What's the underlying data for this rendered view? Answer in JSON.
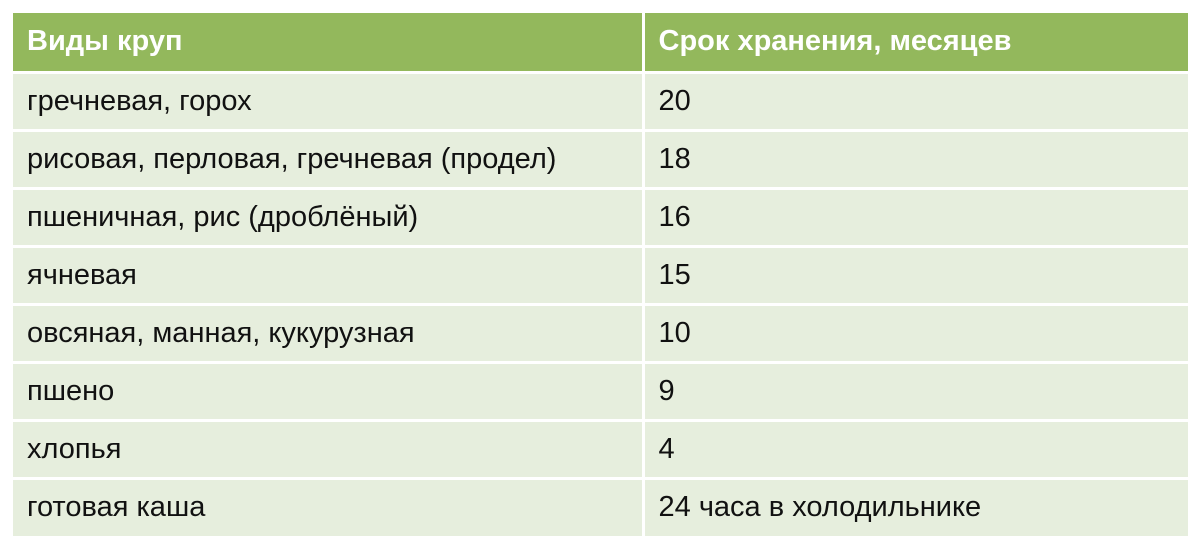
{
  "table": {
    "headers": [
      "Виды круп",
      "Срок хранения, месяцев"
    ],
    "rows": [
      [
        "гречневая, горох",
        "20"
      ],
      [
        "рисовая, перловая, гречневая (продел)",
        "18"
      ],
      [
        "пшеничная, рис (дроблёный)",
        "16"
      ],
      [
        "ячневая",
        "15"
      ],
      [
        "овсяная, манная, кукурузная",
        "10"
      ],
      [
        "пшено",
        "9"
      ],
      [
        "хлопья",
        "4"
      ],
      [
        "готовая каша",
        "24 часа в холодильнике"
      ]
    ]
  },
  "colors": {
    "header_bg": "#93b85c",
    "row_bg": "#e6eedd",
    "header_text": "#ffffff",
    "body_text": "#111111"
  }
}
